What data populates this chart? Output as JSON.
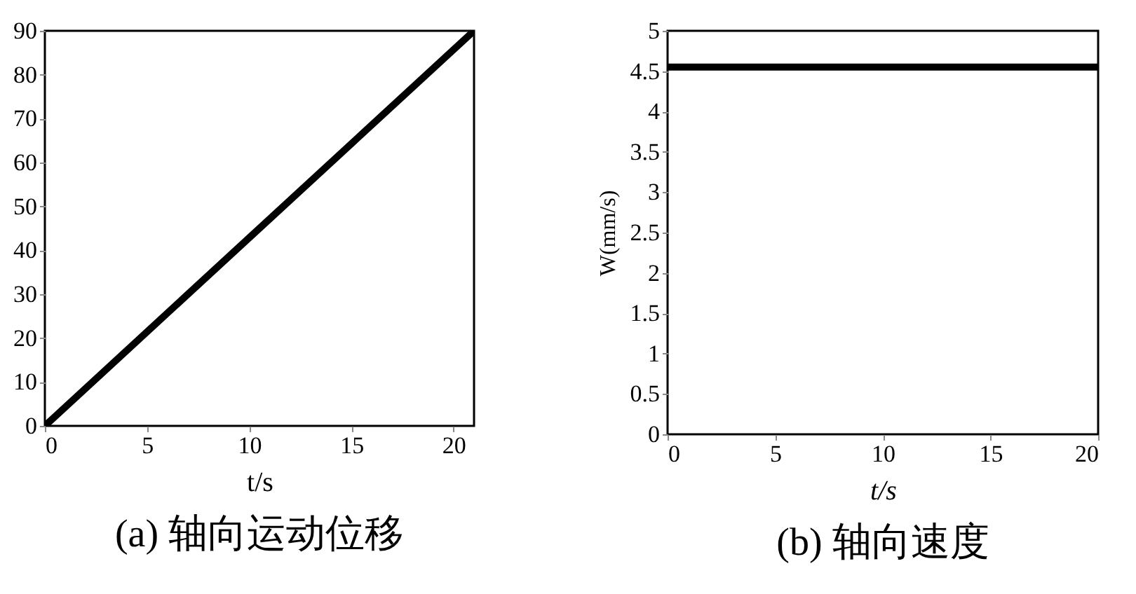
{
  "chart_data": [
    {
      "type": "line",
      "title": "(a) 轴向运动位移",
      "xlabel": "t/s",
      "x": [
        0,
        21
      ],
      "xlim": [
        0,
        21
      ],
      "xticks": [
        0,
        5,
        10,
        15,
        20
      ],
      "ylim": [
        0,
        90
      ],
      "yticks": [
        0,
        10,
        20,
        30,
        40,
        50,
        60,
        70,
        80,
        90
      ],
      "grid": false,
      "marker": "none",
      "line_style": "solid",
      "series": [
        {
          "color": "#000000",
          "values": [
            0,
            90
          ]
        }
      ]
    },
    {
      "type": "line",
      "title": "(b) 轴向速度",
      "xlabel": "t/s",
      "ylabel": "W(mm/s)",
      "x": [
        0,
        20
      ],
      "xlim": [
        0,
        20
      ],
      "xticks": [
        0,
        5,
        10,
        15,
        20
      ],
      "ylim": [
        0,
        5
      ],
      "yticks": [
        0,
        0.5,
        1,
        1.5,
        2,
        2.5,
        3,
        3.5,
        4,
        4.5,
        5
      ],
      "grid": false,
      "marker": "none",
      "line_style": "solid",
      "series": [
        {
          "color": "#000000",
          "values": [
            4.55,
            4.55
          ]
        }
      ]
    }
  ]
}
